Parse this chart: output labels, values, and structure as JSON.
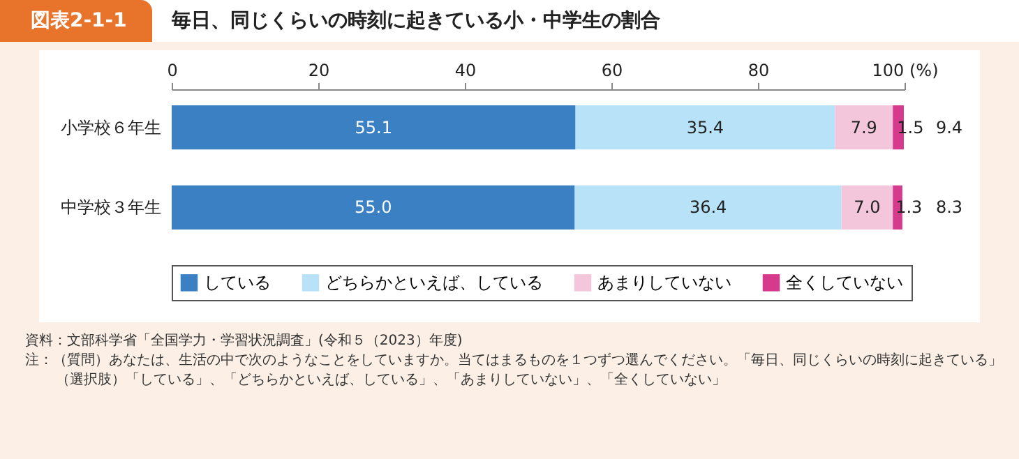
{
  "chart_data": {
    "type": "bar",
    "orientation": "horizontal",
    "stacked": true,
    "title": "毎日、同じくらいの時刻に起きている小・中学生の割合",
    "categories": [
      "小学校６年生",
      "中学校３年生"
    ],
    "series": [
      {
        "name": "している",
        "color": "#3a80c3",
        "values": [
          55.1,
          55.0
        ],
        "value_labels": [
          "55.1",
          "55.0"
        ]
      },
      {
        "name": "どちらかといえば、している",
        "color": "#b8e2f7",
        "values": [
          35.4,
          36.4
        ],
        "value_labels": [
          "35.4",
          "36.4"
        ]
      },
      {
        "name": "あまりしていない",
        "color": "#f4c6dc",
        "values": [
          7.9,
          7.0
        ],
        "value_labels": [
          "7.9",
          "7.0"
        ]
      },
      {
        "name": "全くしていない",
        "color": "#d63a8c",
        "values": [
          1.5,
          1.3
        ],
        "value_labels": [
          "1.5",
          "1.3"
        ]
      }
    ],
    "xlim": [
      0,
      100
    ],
    "xticks": [
      0,
      20,
      40,
      60,
      80,
      {
        "value": 100,
        "label": "100 (%)"
      }
    ],
    "legend": "bottom",
    "grid": false,
    "annotations": [
      "図表2-1-1",
      "9.4",
      "8.3",
      "資料：文部科学省「全国学力・学習状況調査」(令和５（2023）年度)",
      "注：（質問）あなたは、生活の中で次のようなことをしていますか。当てはまるものを１つずつ選んでください。「毎日、同じくらいの時刻に起きている」",
      "（選択肢）「している」、「どちらかといえば、している」、「あまりしていない」、「全くしていない」"
    ]
  }
}
